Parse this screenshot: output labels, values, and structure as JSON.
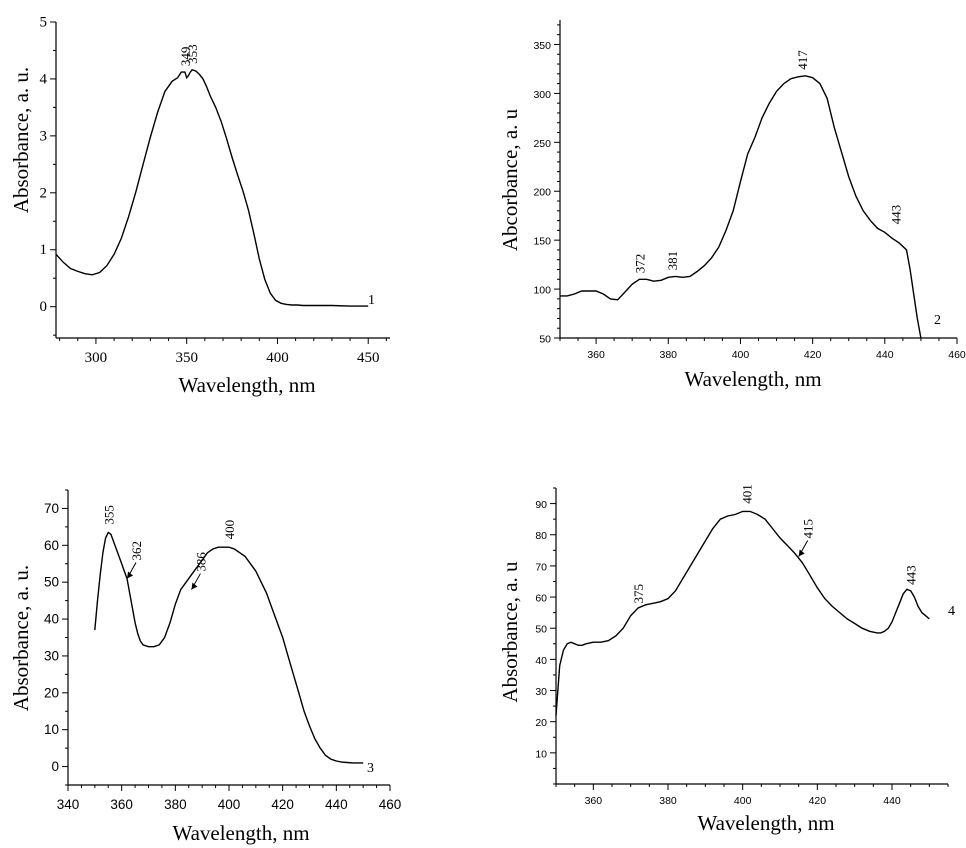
{
  "chart_data": [
    {
      "type": "line",
      "panel_tag": "1",
      "xlabel": "Wavelength, nm",
      "ylabel": "Absorbance, a. u.",
      "xlim": [
        278,
        462
      ],
      "ylim": [
        -0.55,
        5
      ],
      "xticks": [
        300,
        350,
        400,
        450
      ],
      "yticks": [
        0,
        1,
        2,
        3,
        4,
        5
      ],
      "annotations": [
        {
          "text": "349",
          "x": 349,
          "y": 4.12
        },
        {
          "text": "353",
          "x": 353,
          "y": 4.16
        }
      ],
      "series": [
        {
          "x": [
            278,
            282,
            286,
            290,
            294,
            298,
            302,
            306,
            310,
            314,
            318,
            322,
            326,
            330,
            334,
            338,
            342,
            345,
            347,
            349,
            350,
            351,
            352,
            353,
            355,
            357,
            359,
            361,
            363,
            366,
            369,
            372,
            375,
            378,
            381,
            384,
            387,
            390,
            393,
            396,
            399,
            402,
            405,
            408,
            411,
            414,
            420,
            430,
            440,
            450
          ],
          "y": [
            0.92,
            0.78,
            0.67,
            0.62,
            0.58,
            0.56,
            0.6,
            0.72,
            0.92,
            1.2,
            1.58,
            2.02,
            2.5,
            2.98,
            3.42,
            3.78,
            3.96,
            4.02,
            4.12,
            4.12,
            4.02,
            4.06,
            4.12,
            4.16,
            4.14,
            4.08,
            4.0,
            3.86,
            3.7,
            3.5,
            3.25,
            2.95,
            2.62,
            2.32,
            2.03,
            1.7,
            1.28,
            0.84,
            0.48,
            0.24,
            0.11,
            0.06,
            0.04,
            0.03,
            0.03,
            0.02,
            0.02,
            0.02,
            0.01,
            0.01
          ]
        }
      ]
    },
    {
      "type": "line",
      "panel_tag": "2",
      "xlabel": "Wavelength, nm",
      "ylabel": "Abcorbance, a. u",
      "xlim": [
        350,
        460
      ],
      "ylim": [
        50,
        375
      ],
      "xticks": [
        360,
        380,
        400,
        420,
        440,
        460
      ],
      "yticks": [
        50,
        100,
        150,
        200,
        250,
        300,
        350
      ],
      "annotations": [
        {
          "text": "372",
          "x": 372,
          "y": 110
        },
        {
          "text": "381",
          "x": 381,
          "y": 113
        },
        {
          "text": "417",
          "x": 417,
          "y": 318
        },
        {
          "text": "443",
          "x": 443,
          "y": 160
        }
      ],
      "series": [
        {
          "x": [
            350,
            352,
            354,
            356,
            358,
            360,
            362,
            364,
            366,
            368,
            370,
            372,
            374,
            376,
            378,
            380,
            382,
            384,
            386,
            388,
            390,
            392,
            394,
            396,
            398,
            400,
            402,
            404,
            406,
            408,
            410,
            412,
            414,
            416,
            418,
            420,
            422,
            424,
            426,
            428,
            430,
            432,
            434,
            436,
            438,
            440,
            442,
            444,
            446,
            447,
            448,
            449,
            450
          ],
          "y": [
            93,
            93,
            95,
            98,
            98,
            98,
            95,
            90,
            89,
            97,
            105,
            110,
            110,
            108,
            109,
            112,
            113,
            112,
            113,
            118,
            124,
            132,
            143,
            160,
            180,
            210,
            238,
            255,
            275,
            290,
            302,
            310,
            315,
            317,
            318,
            316,
            310,
            295,
            265,
            240,
            215,
            195,
            180,
            170,
            162,
            158,
            152,
            147,
            140,
            120,
            95,
            70,
            50
          ]
        }
      ]
    },
    {
      "type": "line",
      "panel_tag": "3",
      "xlabel": "Wavelength, nm",
      "ylabel": "Absorbance, a. u.",
      "xlim": [
        340,
        460
      ],
      "ylim": [
        -5,
        75
      ],
      "xticks": [
        340,
        360,
        380,
        400,
        420,
        440,
        460
      ],
      "yticks": [
        0,
        10,
        20,
        30,
        40,
        50,
        60,
        70
      ],
      "annotations": [
        {
          "text": "355",
          "x": 355,
          "y": 64
        },
        {
          "text": "362",
          "x": 362,
          "y": 51,
          "arrow": true
        },
        {
          "text": "386",
          "x": 386,
          "y": 48,
          "arrow": true
        },
        {
          "text": "400",
          "x": 400,
          "y": 60
        }
      ],
      "series": [
        {
          "x": [
            350,
            351,
            352,
            353,
            354,
            355,
            356,
            357,
            358,
            359,
            360,
            361,
            362,
            363,
            364,
            365,
            366,
            367,
            368,
            370,
            372,
            374,
            376,
            378,
            380,
            382,
            384,
            386,
            388,
            390,
            392,
            394,
            396,
            398,
            400,
            402,
            404,
            406,
            408,
            410,
            412,
            414,
            416,
            418,
            420,
            422,
            424,
            426,
            428,
            430,
            432,
            434,
            436,
            438,
            440,
            442,
            444,
            446,
            448,
            450
          ],
          "y": [
            37,
            45,
            52,
            58,
            62,
            63.5,
            63,
            61,
            59,
            57,
            55,
            53,
            51,
            47,
            43,
            39,
            36,
            34,
            33,
            32.5,
            32.5,
            33,
            35,
            39,
            44,
            48,
            50,
            52,
            54,
            56,
            58,
            59,
            59.5,
            59.5,
            59.5,
            59,
            58,
            57,
            55,
            53,
            50,
            47,
            43,
            39,
            35,
            30,
            25,
            20,
            15,
            11,
            7.5,
            5,
            3,
            2,
            1.5,
            1.2,
            1.1,
            1.0,
            1.0,
            1.0
          ]
        }
      ]
    },
    {
      "type": "line",
      "panel_tag": "4",
      "xlabel": "Wavelength, nm",
      "ylabel": "Absorbance, a. u",
      "xlim": [
        350,
        455
      ],
      "ylim": [
        0,
        95
      ],
      "xticks": [
        360,
        380,
        400,
        420,
        440
      ],
      "yticks": [
        10,
        20,
        30,
        40,
        50,
        60,
        70,
        80,
        90
      ],
      "annotations": [
        {
          "text": "375",
          "x": 372,
          "y": 56
        },
        {
          "text": "401",
          "x": 401,
          "y": 88
        },
        {
          "text": "415",
          "x": 415,
          "y": 73,
          "arrow": true
        },
        {
          "text": "443",
          "x": 445,
          "y": 62
        }
      ],
      "series": [
        {
          "x": [
            350,
            351,
            352,
            353,
            354,
            355,
            356,
            357,
            358,
            360,
            362,
            364,
            366,
            368,
            370,
            372,
            374,
            376,
            378,
            380,
            382,
            384,
            386,
            388,
            390,
            392,
            394,
            396,
            398,
            400,
            402,
            404,
            406,
            408,
            410,
            412,
            414,
            416,
            418,
            420,
            422,
            424,
            426,
            428,
            430,
            432,
            434,
            436,
            437,
            438,
            439,
            440,
            441,
            442,
            443,
            444,
            445,
            446,
            447,
            448,
            449,
            450
          ],
          "y": [
            22,
            38,
            43,
            45,
            45.5,
            45,
            44.5,
            44.5,
            45,
            45.5,
            45.5,
            46,
            47.5,
            50,
            54,
            56.5,
            57.5,
            58,
            58.5,
            59.5,
            62,
            66,
            70,
            74,
            78,
            82,
            85,
            86,
            86.5,
            87.5,
            87.5,
            86.5,
            85,
            82,
            79,
            76.5,
            74,
            71,
            67,
            63,
            59.5,
            57,
            55,
            53,
            51.5,
            50,
            49,
            48.5,
            48.5,
            49,
            50,
            52,
            55,
            58,
            61,
            62.5,
            62,
            60,
            57,
            55,
            54,
            53
          ]
        }
      ]
    }
  ]
}
